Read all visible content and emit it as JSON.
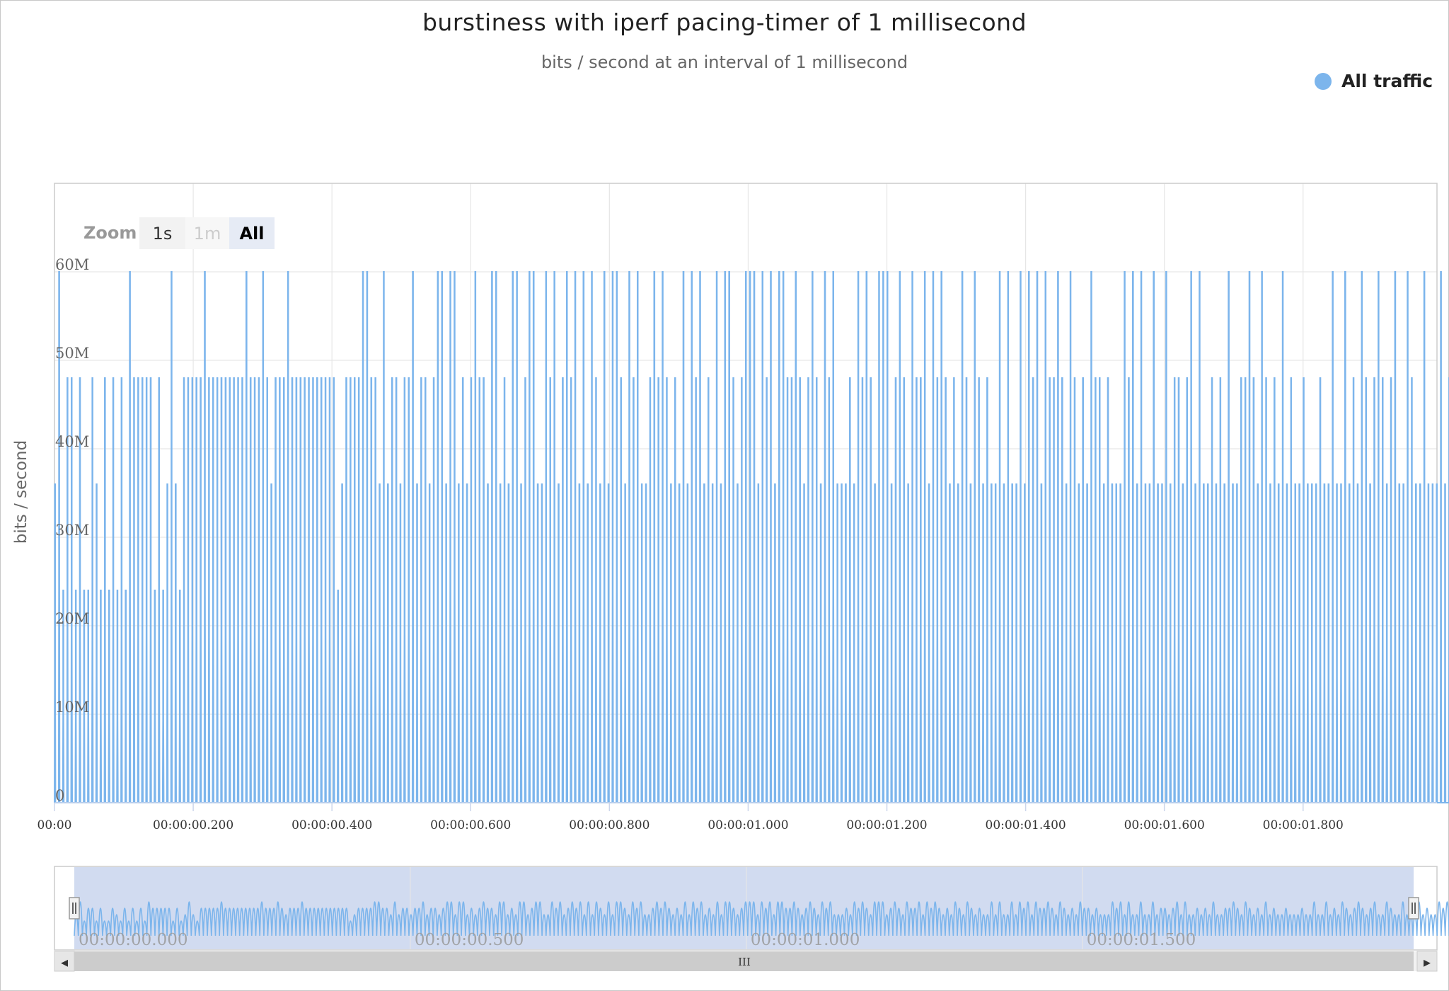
{
  "chart_data": {
    "type": "line",
    "title": "burstiness with iperf pacing-timer of 1 millisecond",
    "subtitle": "bits / second at an interval of 1 millisecond",
    "ylabel": "bits / second",
    "xlabel": "",
    "x_unit": "seconds",
    "xlim": [
      0,
      1.993
    ],
    "ylim": [
      0,
      70000000
    ],
    "y_ticks": [
      {
        "value": 0,
        "label": "0"
      },
      {
        "value": 10000000,
        "label": "10M"
      },
      {
        "value": 20000000,
        "label": "20M"
      },
      {
        "value": 30000000,
        "label": "30M"
      },
      {
        "value": 40000000,
        "label": "40M"
      },
      {
        "value": 50000000,
        "label": "50M"
      },
      {
        "value": 60000000,
        "label": "60M"
      }
    ],
    "x_ticks": [
      {
        "value": 0,
        "label": "00:00"
      },
      {
        "value": 0.2,
        "label": "00:00:00.200"
      },
      {
        "value": 0.4,
        "label": "00:00:00.400"
      },
      {
        "value": 0.6,
        "label": "00:00:00.600"
      },
      {
        "value": 0.8,
        "label": "00:00:00.800"
      },
      {
        "value": 1.0,
        "label": "00:00:01.000"
      },
      {
        "value": 1.2,
        "label": "00:00:01.200"
      },
      {
        "value": 1.4,
        "label": "00:00:01.400"
      },
      {
        "value": 1.6,
        "label": "00:00:01.600"
      },
      {
        "value": 1.8,
        "label": "00:00:01.800"
      }
    ],
    "grid": true,
    "legend_position": "top-right",
    "series": [
      {
        "name": "All traffic",
        "color": "#7cb5ec",
        "spike_interval_s": 0.006,
        "spike_width_s": 0.001,
        "baseline": 0,
        "peaks": [
          36000000,
          60000000,
          24000000,
          48000000,
          48000000,
          24000000,
          48000000,
          24000000,
          24000000,
          48000000,
          36000000,
          24000000,
          48000000,
          24000000,
          48000000,
          24000000,
          48000000,
          24000000,
          60000000,
          48000000,
          48000000,
          48000000,
          48000000,
          48000000,
          24000000,
          48000000,
          24000000,
          36000000,
          60000000,
          36000000,
          24000000,
          48000000,
          48000000,
          48000000,
          48000000,
          48000000,
          60000000,
          48000000,
          48000000,
          48000000,
          48000000,
          48000000,
          48000000,
          48000000,
          48000000,
          48000000,
          60000000,
          48000000,
          48000000,
          48000000,
          60000000,
          48000000,
          36000000,
          48000000,
          48000000,
          48000000,
          60000000,
          48000000,
          48000000,
          48000000,
          48000000,
          48000000,
          48000000,
          48000000,
          48000000,
          48000000,
          48000000,
          48000000,
          24000000,
          36000000,
          48000000,
          48000000,
          48000000,
          48000000,
          60000000,
          60000000,
          48000000,
          48000000,
          36000000,
          60000000,
          36000000,
          48000000,
          48000000,
          36000000,
          48000000,
          48000000,
          60000000,
          36000000,
          48000000,
          48000000,
          36000000,
          48000000,
          60000000,
          60000000,
          36000000,
          60000000,
          60000000,
          36000000,
          48000000,
          36000000,
          48000000,
          60000000,
          48000000,
          48000000,
          36000000,
          60000000,
          60000000,
          36000000,
          48000000,
          36000000,
          60000000,
          60000000,
          36000000,
          48000000,
          60000000,
          60000000,
          36000000,
          36000000,
          60000000,
          48000000,
          60000000,
          36000000,
          48000000,
          60000000,
          48000000,
          60000000,
          36000000,
          60000000,
          36000000,
          60000000,
          48000000,
          36000000,
          60000000,
          36000000,
          60000000,
          60000000,
          48000000,
          36000000,
          60000000,
          48000000,
          60000000,
          36000000,
          36000000,
          48000000,
          60000000,
          48000000,
          60000000,
          48000000,
          36000000,
          48000000,
          36000000,
          60000000,
          36000000,
          60000000,
          48000000,
          60000000,
          36000000,
          48000000,
          36000000,
          60000000,
          36000000,
          60000000,
          60000000,
          48000000,
          36000000,
          48000000,
          60000000,
          60000000,
          60000000,
          36000000,
          60000000,
          48000000,
          60000000,
          36000000,
          60000000,
          60000000,
          48000000,
          48000000,
          60000000,
          48000000,
          36000000,
          48000000,
          60000000,
          48000000,
          36000000,
          60000000,
          48000000,
          60000000,
          36000000,
          36000000,
          36000000,
          48000000,
          36000000,
          60000000,
          48000000,
          60000000,
          48000000,
          36000000,
          60000000,
          60000000,
          60000000,
          36000000,
          48000000,
          60000000,
          48000000,
          36000000,
          60000000,
          48000000,
          48000000,
          60000000,
          36000000,
          60000000,
          48000000,
          60000000,
          48000000,
          36000000,
          48000000,
          36000000,
          60000000,
          48000000,
          36000000,
          60000000,
          48000000,
          36000000,
          48000000,
          36000000,
          36000000,
          60000000,
          36000000,
          60000000,
          36000000,
          36000000,
          60000000,
          36000000,
          60000000,
          48000000,
          60000000,
          36000000,
          60000000,
          48000000,
          48000000,
          60000000,
          48000000,
          36000000,
          60000000,
          48000000,
          36000000,
          48000000,
          36000000,
          60000000,
          48000000,
          48000000,
          36000000,
          48000000,
          36000000,
          36000000,
          36000000,
          60000000,
          48000000,
          60000000,
          36000000,
          60000000,
          36000000,
          36000000,
          60000000,
          36000000,
          36000000,
          60000000,
          36000000,
          48000000,
          48000000,
          36000000,
          48000000,
          60000000,
          36000000,
          60000000,
          36000000,
          36000000,
          48000000,
          36000000,
          48000000,
          36000000,
          60000000,
          36000000,
          36000000,
          48000000,
          48000000,
          60000000,
          48000000,
          36000000,
          60000000,
          48000000,
          36000000,
          48000000,
          36000000,
          60000000,
          36000000,
          48000000,
          36000000,
          36000000,
          48000000,
          36000000,
          36000000,
          36000000,
          48000000,
          36000000,
          36000000,
          60000000,
          36000000,
          36000000,
          60000000,
          36000000,
          48000000,
          36000000,
          60000000,
          48000000,
          36000000,
          48000000,
          60000000,
          48000000,
          36000000,
          48000000,
          60000000,
          36000000,
          36000000,
          60000000,
          48000000,
          36000000,
          36000000,
          60000000,
          36000000,
          36000000,
          36000000,
          60000000,
          36000000,
          48000000,
          36000000,
          36000000,
          60000000,
          48000000,
          60000000,
          36000000,
          36000000,
          36000000,
          36000000,
          36000000,
          48000000,
          36000000,
          60000000,
          36000000,
          36000000,
          48000000
        ]
      }
    ],
    "navigator": {
      "x_ticks": [
        {
          "value": 0,
          "label": "00:00:00.000"
        },
        {
          "value": 0.5,
          "label": "00:00:00.500"
        },
        {
          "value": 1.0,
          "label": "00:00:01.000"
        },
        {
          "value": 1.5,
          "label": "00:00:01.500"
        }
      ]
    }
  },
  "range_selector": {
    "label": "Zoom",
    "buttons": [
      "1s",
      "1m",
      "All"
    ],
    "selected": "All"
  },
  "scrollbar": {
    "left_arrow": "◂",
    "right_arrow": "▸",
    "grip": "III"
  }
}
